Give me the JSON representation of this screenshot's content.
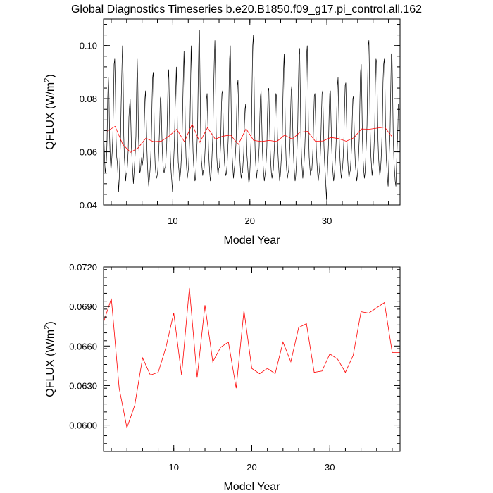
{
  "title": "Global Diagnostics Timeseries b.e20.B1850.f09_g17.pi_control.all.162",
  "colors": {
    "monthly_line": "#000000",
    "annual_line": "#ff0000",
    "frame": "#000000"
  },
  "chart_data": [
    {
      "type": "line",
      "xlabel": "Model Year",
      "ylabel_main": "QFLUX (W/m",
      "ylabel_sup": "2",
      "ylabel_close": ")",
      "xlim": [
        1,
        39.5
      ],
      "ylim": [
        0.04,
        0.11
      ],
      "x_ticks": [
        10,
        20,
        30
      ],
      "x_tick_labels": [
        "10",
        "20",
        "30"
      ],
      "y_ticks": [
        0.04,
        0.06,
        0.08,
        0.1
      ],
      "y_tick_labels": [
        "0.04",
        "0.06",
        "0.08",
        "0.10"
      ],
      "series": [
        {
          "kind": "monthly",
          "x_start": 1.04,
          "x_step": 0.0833333,
          "values": [
            0.066,
            0.059,
            0.052,
            0.054,
            0.057,
            0.064,
            0.08,
            0.088,
            0.082,
            0.066,
            0.058,
            0.053,
            0.056,
            0.06,
            0.066,
            0.078,
            0.093,
            0.095,
            0.085,
            0.065,
            0.058,
            0.056,
            0.051,
            0.045,
            0.05,
            0.057,
            0.064,
            0.078,
            0.09,
            0.1,
            0.089,
            0.066,
            0.058,
            0.054,
            0.049,
            0.052,
            0.052,
            0.056,
            0.061,
            0.073,
            0.077,
            0.08,
            0.072,
            0.062,
            0.057,
            0.053,
            0.048,
            0.052,
            0.056,
            0.06,
            0.066,
            0.082,
            0.095,
            0.086,
            0.066,
            0.058,
            0.052,
            0.053,
            0.056,
            0.058,
            0.055,
            0.057,
            0.06,
            0.07,
            0.08,
            0.083,
            0.073,
            0.062,
            0.055,
            0.05,
            0.047,
            0.05,
            0.053,
            0.058,
            0.065,
            0.078,
            0.088,
            0.09,
            0.078,
            0.062,
            0.055,
            0.052,
            0.05,
            0.051,
            0.053,
            0.057,
            0.063,
            0.07,
            0.08,
            0.081,
            0.07,
            0.061,
            0.056,
            0.053,
            0.052,
            0.054,
            0.054,
            0.058,
            0.063,
            0.074,
            0.087,
            0.091,
            0.079,
            0.064,
            0.056,
            0.052,
            0.049,
            0.045,
            0.052,
            0.058,
            0.064,
            0.076,
            0.083,
            0.092,
            0.08,
            0.064,
            0.056,
            0.053,
            0.049,
            0.051,
            0.054,
            0.059,
            0.066,
            0.078,
            0.089,
            0.098,
            0.085,
            0.067,
            0.058,
            0.054,
            0.05,
            0.052,
            0.054,
            0.06,
            0.067,
            0.083,
            0.1,
            0.09,
            0.07,
            0.06,
            0.055,
            0.052,
            0.049,
            0.05,
            0.056,
            0.062,
            0.068,
            0.086,
            0.101,
            0.106,
            0.086,
            0.066,
            0.057,
            0.054,
            0.051,
            0.053,
            0.053,
            0.057,
            0.062,
            0.072,
            0.08,
            0.082,
            0.071,
            0.061,
            0.056,
            0.052,
            0.049,
            0.051,
            0.055,
            0.061,
            0.068,
            0.083,
            0.094,
            0.102,
            0.089,
            0.068,
            0.058,
            0.054,
            0.051,
            0.054,
            0.054,
            0.058,
            0.063,
            0.075,
            0.082,
            0.083,
            0.072,
            0.062,
            0.056,
            0.053,
            0.051,
            0.052,
            0.055,
            0.06,
            0.066,
            0.082,
            0.095,
            0.1,
            0.083,
            0.065,
            0.058,
            0.054,
            0.05,
            0.053,
            0.055,
            0.059,
            0.064,
            0.076,
            0.085,
            0.087,
            0.075,
            0.063,
            0.057,
            0.053,
            0.05,
            0.052,
            0.052,
            0.056,
            0.06,
            0.07,
            0.076,
            0.078,
            0.068,
            0.059,
            0.055,
            0.051,
            0.048,
            0.05,
            0.055,
            0.062,
            0.068,
            0.085,
            0.1,
            0.104,
            0.088,
            0.067,
            0.058,
            0.054,
            0.05,
            0.053,
            0.053,
            0.057,
            0.062,
            0.073,
            0.081,
            0.083,
            0.072,
            0.061,
            0.056,
            0.052,
            0.049,
            0.051,
            0.053,
            0.057,
            0.062,
            0.074,
            0.083,
            0.084,
            0.073,
            0.062,
            0.056,
            0.052,
            0.05,
            0.052,
            0.053,
            0.058,
            0.063,
            0.074,
            0.082,
            0.081,
            0.071,
            0.061,
            0.056,
            0.052,
            0.049,
            0.051,
            0.055,
            0.06,
            0.066,
            0.08,
            0.091,
            0.097,
            0.082,
            0.065,
            0.057,
            0.053,
            0.05,
            0.052,
            0.053,
            0.058,
            0.063,
            0.075,
            0.083,
            0.085,
            0.073,
            0.062,
            0.056,
            0.052,
            0.049,
            0.051,
            0.055,
            0.061,
            0.068,
            0.083,
            0.096,
            0.099,
            0.084,
            0.066,
            0.058,
            0.054,
            0.05,
            0.053,
            0.056,
            0.061,
            0.068,
            0.084,
            0.097,
            0.1,
            0.086,
            0.067,
            0.058,
            0.054,
            0.051,
            0.053,
            0.053,
            0.057,
            0.062,
            0.073,
            0.081,
            0.082,
            0.071,
            0.061,
            0.056,
            0.052,
            0.049,
            0.051,
            0.053,
            0.057,
            0.063,
            0.074,
            0.082,
            0.083,
            0.072,
            0.062,
            0.056,
            0.052,
            0.047,
            0.042,
            0.05,
            0.057,
            0.063,
            0.074,
            0.082,
            0.083,
            0.072,
            0.062,
            0.056,
            0.052,
            0.049,
            0.051,
            0.054,
            0.058,
            0.064,
            0.076,
            0.085,
            0.088,
            0.075,
            0.063,
            0.057,
            0.053,
            0.05,
            0.052,
            0.054,
            0.058,
            0.064,
            0.076,
            0.085,
            0.086,
            0.074,
            0.063,
            0.057,
            0.053,
            0.05,
            0.052,
            0.053,
            0.057,
            0.062,
            0.072,
            0.08,
            0.081,
            0.07,
            0.061,
            0.055,
            0.052,
            0.049,
            0.051,
            0.054,
            0.059,
            0.065,
            0.079,
            0.09,
            0.093,
            0.079,
            0.064,
            0.057,
            0.053,
            0.05,
            0.052,
            0.057,
            0.063,
            0.07,
            0.086,
            0.1,
            0.102,
            0.087,
            0.068,
            0.059,
            0.055,
            0.051,
            0.054,
            0.056,
            0.062,
            0.069,
            0.085,
            0.095,
            0.094,
            0.083,
            0.066,
            0.058,
            0.054,
            0.051,
            0.053,
            0.057,
            0.063,
            0.07,
            0.086,
            0.093,
            0.095,
            0.085,
            0.067,
            0.058,
            0.054,
            0.05,
            0.047,
            0.055,
            0.061,
            0.068,
            0.084,
            0.097,
            0.096,
            0.082,
            0.065,
            0.057,
            0.053,
            0.049,
            0.047,
            0.055,
            0.062,
            0.068,
            0.078
          ]
        },
        {
          "kind": "annual",
          "x": [
            1.5,
            2.5,
            3.5,
            4.5,
            5.5,
            6.5,
            7.5,
            8.5,
            9.5,
            10.5,
            11.5,
            12.5,
            13.5,
            14.5,
            15.5,
            16.5,
            17.5,
            18.5,
            19.5,
            20.5,
            21.5,
            22.5,
            23.5,
            24.5,
            25.5,
            26.5,
            27.5,
            28.5,
            29.5,
            30.5,
            31.5,
            32.5,
            33.5,
            34.5,
            35.5,
            36.5,
            37.5,
            38.5
          ],
          "values": [
            0.0678,
            0.0696,
            0.0628,
            0.0598,
            0.0615,
            0.0651,
            0.0638,
            0.064,
            0.0659,
            0.0685,
            0.0638,
            0.0704,
            0.0636,
            0.0691,
            0.0648,
            0.0659,
            0.0663,
            0.0628,
            0.0687,
            0.0643,
            0.0639,
            0.0643,
            0.0639,
            0.0663,
            0.0648,
            0.0674,
            0.0677,
            0.064,
            0.0641,
            0.0654,
            0.065,
            0.064,
            0.0653,
            0.0686,
            0.0685,
            0.0689,
            0.0693,
            0.0655
          ]
        }
      ]
    },
    {
      "type": "line",
      "xlabel": "Model Year",
      "ylabel_main": "QFLUX (W/m",
      "ylabel_sup": "2",
      "ylabel_close": ")",
      "xlim": [
        1,
        39
      ],
      "ylim": [
        0.058,
        0.072
      ],
      "x_ticks": [
        10,
        20,
        30
      ],
      "x_tick_labels": [
        "10",
        "20",
        "30"
      ],
      "y_ticks": [
        0.06,
        0.063,
        0.066,
        0.069,
        0.072
      ],
      "y_tick_labels": [
        "0.0600",
        "0.0630",
        "0.0660",
        "0.0690",
        "0.0720"
      ],
      "series": [
        {
          "kind": "annual",
          "x": [
            1,
            2,
            3,
            4,
            5,
            6,
            7,
            8,
            9,
            10,
            11,
            12,
            13,
            14,
            15,
            16,
            17,
            18,
            19,
            20,
            21,
            22,
            23,
            24,
            25,
            26,
            27,
            28,
            29,
            30,
            31,
            32,
            33,
            34,
            35,
            36,
            37,
            38,
            39
          ],
          "values": [
            0.0678,
            0.0696,
            0.0628,
            0.0598,
            0.0615,
            0.0651,
            0.0638,
            0.064,
            0.0659,
            0.0685,
            0.0638,
            0.0704,
            0.0636,
            0.0691,
            0.0648,
            0.0659,
            0.0663,
            0.0628,
            0.0687,
            0.0643,
            0.0639,
            0.0643,
            0.0639,
            0.0663,
            0.0648,
            0.0674,
            0.0677,
            0.064,
            0.0641,
            0.0654,
            0.065,
            0.064,
            0.0653,
            0.0686,
            0.0685,
            0.0689,
            0.0693,
            0.0655,
            0.0655
          ]
        }
      ]
    }
  ]
}
